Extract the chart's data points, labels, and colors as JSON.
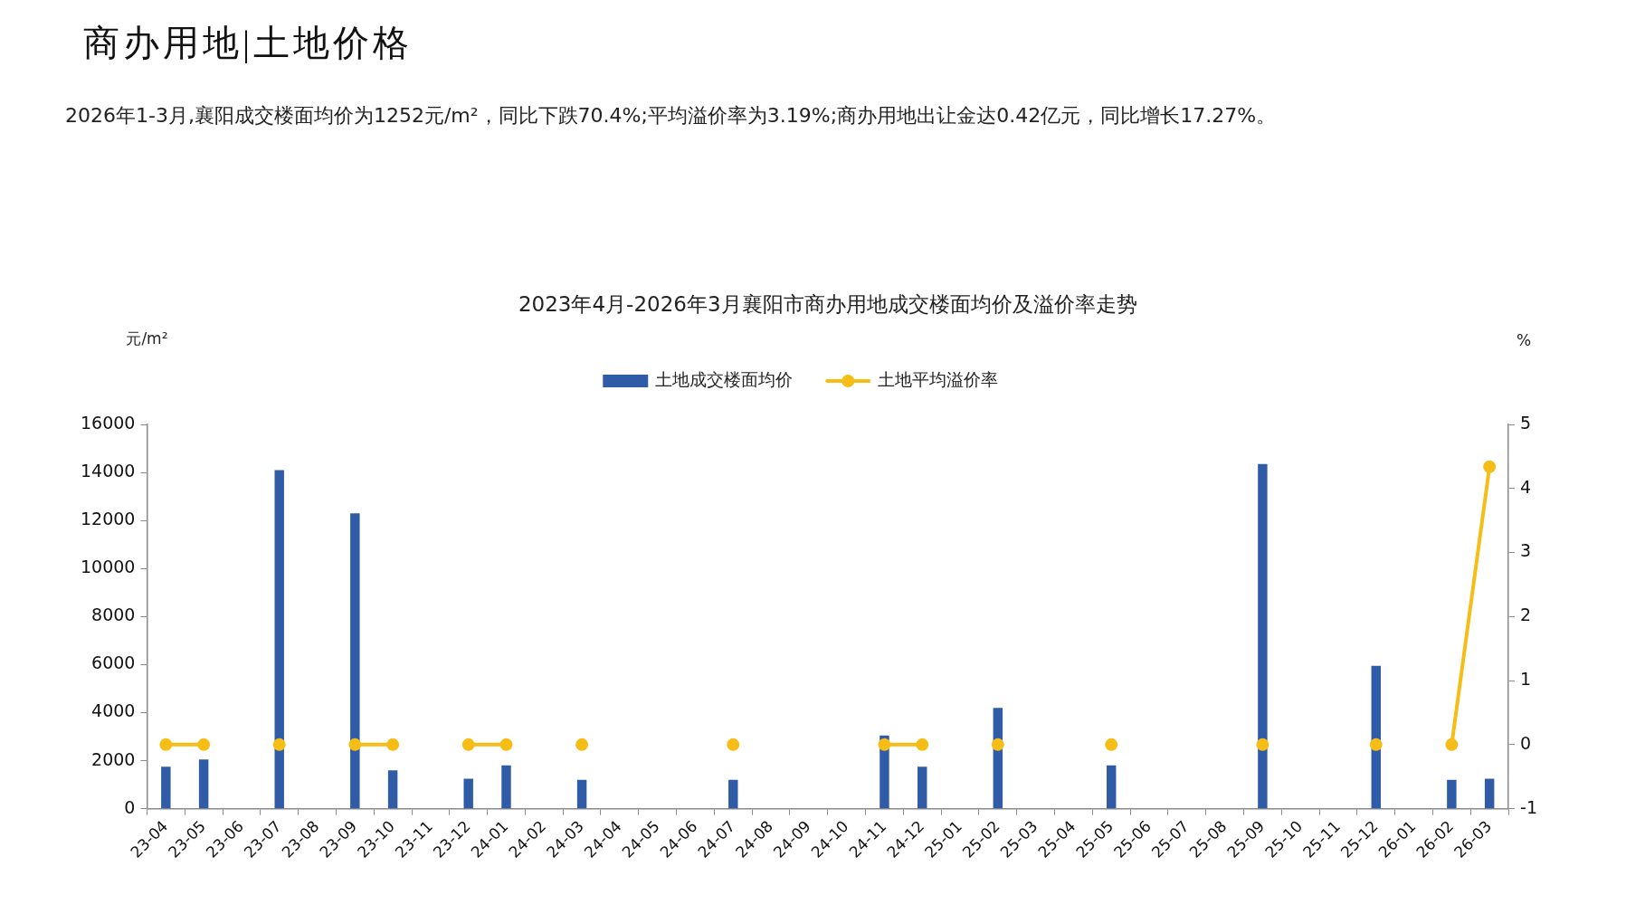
{
  "chart_data": {
    "type": "bar",
    "title": "2023年4月-2026年3月襄阳市商办用地成交楼面均价及溢价率走势",
    "annotations": [
      "商办用地|土地价格",
      "2026年1-3月,襄阳成交楼面均价为1252元/m²，同比下跌70.4%;平均溢价率为3.19%;商办用地出让金达0.42亿元，同比增长17.27%。"
    ],
    "ylabel": "元/m²",
    "y2label": "%",
    "categories": [
      "23-04",
      "23-05",
      "23-06",
      "23-07",
      "23-08",
      "23-09",
      "23-10",
      "23-11",
      "23-12",
      "24-01",
      "24-02",
      "24-03",
      "24-04",
      "24-05",
      "24-06",
      "24-07",
      "24-08",
      "24-09",
      "24-10",
      "24-11",
      "24-12",
      "25-01",
      "25-02",
      "25-03",
      "25-04",
      "25-05",
      "25-06",
      "25-07",
      "25-08",
      "25-09",
      "25-10",
      "25-11",
      "25-12",
      "26-01",
      "26-02",
      "26-03"
    ],
    "series": [
      {
        "name": "土地成交楼面均价",
        "color": "#2f5ba7",
        "values": [
          1750,
          2050,
          null,
          14100,
          null,
          12300,
          1600,
          null,
          1250,
          1800,
          null,
          1200,
          null,
          null,
          null,
          1200,
          null,
          null,
          null,
          3050,
          1750,
          null,
          4200,
          null,
          null,
          1800,
          null,
          null,
          null,
          14350,
          null,
          null,
          5950,
          null,
          1200,
          1250
        ]
      },
      {
        "name": "土地平均溢价率",
        "type": "line",
        "axis": "y2",
        "color": "#f6bd16",
        "values": [
          0,
          0,
          null,
          0,
          null,
          0,
          0,
          null,
          0,
          0,
          null,
          0,
          null,
          null,
          null,
          0,
          null,
          null,
          null,
          0,
          0,
          null,
          0,
          null,
          null,
          0,
          null,
          null,
          null,
          0,
          null,
          null,
          0,
          null,
          0,
          4.34
        ]
      }
    ],
    "ylim": [
      0,
      16000
    ],
    "yticks": [
      0,
      2000,
      4000,
      6000,
      8000,
      10000,
      12000,
      14000,
      16000
    ],
    "y2lim": [
      -1,
      5
    ],
    "y2ticks": [
      -1,
      0,
      1,
      2,
      3,
      4,
      5
    ],
    "legend": "top",
    "marker": "circle"
  }
}
